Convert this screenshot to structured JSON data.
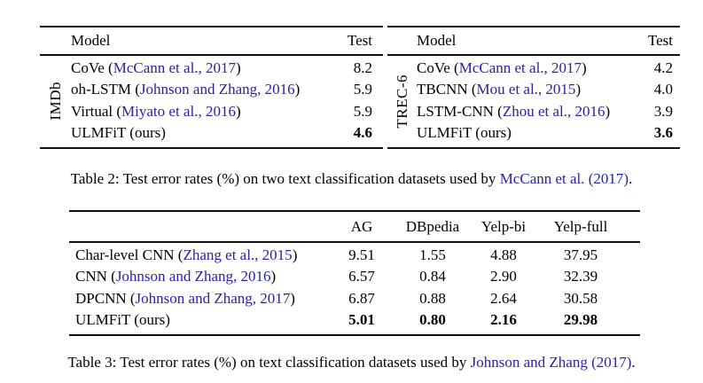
{
  "colors": {
    "link": "#2823A8",
    "text": "#000000",
    "background": "#ffffff",
    "rule": "#111111"
  },
  "table2": {
    "left": {
      "dataset_label": "IMDb",
      "col_model": "Model",
      "col_test": "Test",
      "rows": [
        {
          "pre": "CoVe (",
          "cite": "McCann et al., 2017",
          "post": ")",
          "test": "8.2"
        },
        {
          "pre": "oh-LSTM (",
          "cite": "Johnson and Zhang, 2016",
          "post": ")",
          "test": "5.9"
        },
        {
          "pre": "Virtual (",
          "cite": "Miyato et al., 2016",
          "post": ")",
          "test": "5.9"
        },
        {
          "pre": "ULMFiT (ours)",
          "cite": "",
          "post": "",
          "test": "4.6"
        }
      ]
    },
    "right": {
      "dataset_label": "TREC-6",
      "col_model": "Model",
      "col_test": "Test",
      "rows": [
        {
          "pre": "CoVe (",
          "cite": "McCann et al., 2017",
          "post": ")",
          "test": "4.2"
        },
        {
          "pre": "TBCNN (",
          "cite": "Mou et al., 2015",
          "post": ")",
          "test": "4.0"
        },
        {
          "pre": "LSTM-CNN (",
          "cite": "Zhou et al., 2016",
          "post": ")",
          "test": "3.9"
        },
        {
          "pre": "ULMFiT (ours)",
          "cite": "",
          "post": "",
          "test": "3.6"
        }
      ]
    },
    "caption": {
      "pre": "Table 2: Test error rates (%) on two text classification datasets used by ",
      "cite": "McCann et al. (2017)",
      "post": "."
    }
  },
  "table3": {
    "headers": [
      "AG",
      "DBpedia",
      "Yelp-bi",
      "Yelp-full"
    ],
    "rows": [
      {
        "pre": "Char-level CNN (",
        "cite": "Zhang et al., 2015",
        "post": ")",
        "values": [
          "9.51",
          "1.55",
          "4.88",
          "37.95"
        ]
      },
      {
        "pre": "CNN (",
        "cite": "Johnson and Zhang, 2016",
        "post": ")",
        "values": [
          "6.57",
          "0.84",
          "2.90",
          "32.39"
        ]
      },
      {
        "pre": "DPCNN (",
        "cite": "Johnson and Zhang, 2017",
        "post": ")",
        "values": [
          "6.87",
          "0.88",
          "2.64",
          "30.58"
        ]
      },
      {
        "pre": "ULMFiT (ours)",
        "cite": "",
        "post": "",
        "values": [
          "5.01",
          "0.80",
          "2.16",
          "29.98"
        ]
      }
    ],
    "caption": {
      "pre": "Table 3: Test error rates (%) on text classification datasets used by ",
      "cite": "Johnson and Zhang (2017)",
      "post": "."
    }
  }
}
